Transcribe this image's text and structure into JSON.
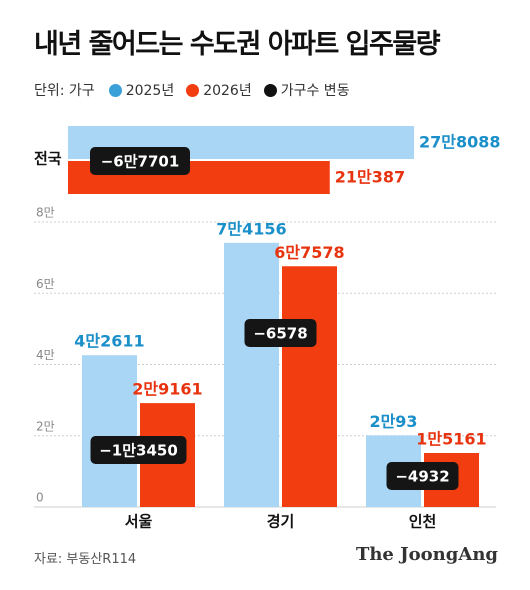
{
  "title": "내년 줄어드는 수도권 아파트 입주물량",
  "legend": {
    "unit_label": "단위: 가구",
    "items": [
      {
        "label": "2025년",
        "color": "#3aa0d8"
      },
      {
        "label": "2026년",
        "color": "#f23d10"
      },
      {
        "label": "가구수 변동",
        "color": "#111111"
      }
    ]
  },
  "colors": {
    "bar_2025": "#a9d6f5",
    "bar_2026": "#f23d10",
    "label_2025": "#1b8fc9",
    "label_2026": "#e8330f"
  },
  "source": "자료: 부동산R114",
  "brand": "The JoongAng",
  "chart_data": [
    {
      "type": "bar",
      "orientation": "horizontal",
      "categories": [
        "전국"
      ],
      "series": [
        {
          "name": "2025년",
          "values": [
            278088
          ],
          "labels": [
            "27만8088"
          ]
        },
        {
          "name": "2026년",
          "values": [
            210387
          ],
          "labels": [
            "21만387"
          ]
        }
      ],
      "change_labels": [
        "−6만7701"
      ]
    },
    {
      "type": "bar",
      "categories": [
        "서울",
        "경기",
        "인천"
      ],
      "series": [
        {
          "name": "2025년",
          "values": [
            42611,
            74156,
            20093
          ],
          "labels": [
            "4만2611",
            "7만4156",
            "2만93"
          ]
        },
        {
          "name": "2026년",
          "values": [
            29161,
            67578,
            15161
          ],
          "labels": [
            "2만9161",
            "6만7578",
            "1만5161"
          ]
        }
      ],
      "change_labels": [
        "−1만3450",
        "−6578",
        "−4932"
      ],
      "ylim": [
        0,
        80000
      ],
      "yticks": [
        0,
        20000,
        40000,
        60000,
        80000
      ],
      "ytick_labels": [
        "0",
        "2만",
        "4만",
        "6만",
        "8만"
      ],
      "grid": true
    }
  ]
}
